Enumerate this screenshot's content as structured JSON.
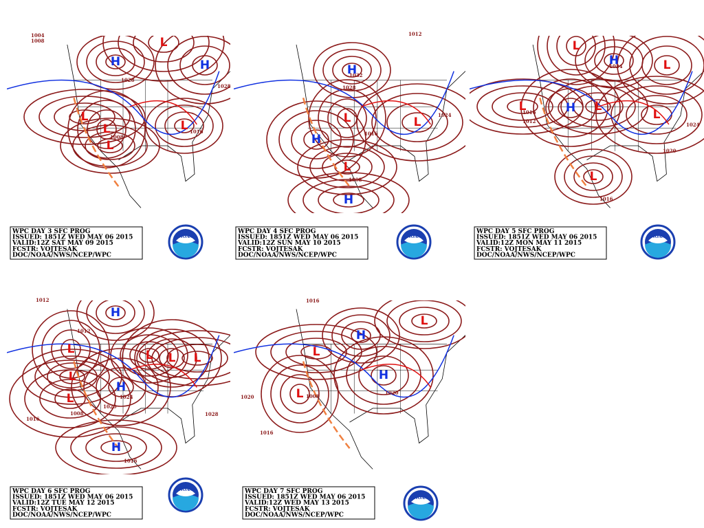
{
  "panels": [
    {
      "caption": [
        "WPC DAY 3 SFC PROG",
        "ISSUED: 1851Z WED MAY 06 2015",
        "VALID:12Z SAT MAY 09 2015",
        "FCSTR: VOJTESAK",
        "DOC/NOAA/NWS/NCEP/WPC"
      ],
      "highs": [
        "H",
        "H"
      ],
      "lows": [
        "L",
        "L",
        "L",
        "L",
        "L"
      ],
      "isobar_labels": [
        "1004",
        "1008",
        "1028",
        "1028",
        "1016",
        "1008"
      ]
    },
    {
      "caption": [
        "WPC DAY 4 SFC PROG",
        "ISSUED: 1851Z WED MAY 06 2015",
        "VALID:12Z SUN MAY 10 2015",
        "FCSTR: VOJTESAK",
        "DOC/NOAA/NWS/NCEP/WPC"
      ],
      "highs": [
        "H",
        "H",
        "H"
      ],
      "lows": [
        "L",
        "L",
        "L"
      ],
      "isobar_labels": [
        "1012",
        "1032",
        "1028",
        "1008",
        "1024",
        "1016"
      ]
    },
    {
      "caption": [
        "WPC DAY 5 SFC PROG",
        "ISSUED: 1851Z WED MAY 06 2015",
        "VALID:12Z MON MAY 11 2015",
        "FCSTR: VOJTESAK",
        "DOC/NOAA/NWS/NCEP/WPC"
      ],
      "highs": [
        "H",
        "H"
      ],
      "lows": [
        "L",
        "L",
        "L",
        "L",
        "L",
        "L"
      ],
      "isobar_labels": [
        "1016",
        "1012",
        "1024",
        "1020",
        "1016",
        "1024"
      ]
    },
    {
      "caption": [
        "WPC DAY 6 SFC PROG",
        "ISSUED: 1851Z WED MAY 06 2015",
        "VALID:12Z TUE MAY 12 2015",
        "FCSTR: VOJTESAK",
        "DOC/NOAA/NWS/NCEP/WPC"
      ],
      "highs": [
        "H",
        "H",
        "H"
      ],
      "lows": [
        "L",
        "L",
        "L",
        "L",
        "L",
        "L"
      ],
      "isobar_labels": [
        "1012",
        "1012",
        "1016",
        "1020",
        "1024",
        "1016",
        "1028",
        "1008"
      ]
    },
    {
      "caption": [
        "WPC DAY 7 SFC PROG",
        "ISSUED: 1851Z WED MAY 06 2015",
        "VALID:12Z WED MAY 13 2015",
        "FCSTR: VOJTESAK",
        "DOC/NOAA/NWS/NCEP/WPC"
      ],
      "highs": [
        "H",
        "H"
      ],
      "lows": [
        "L",
        "L",
        "L"
      ],
      "isobar_labels": [
        "1016",
        "1020",
        "1016",
        "1008",
        "1020"
      ]
    }
  ],
  "logo_text": "NOAA"
}
